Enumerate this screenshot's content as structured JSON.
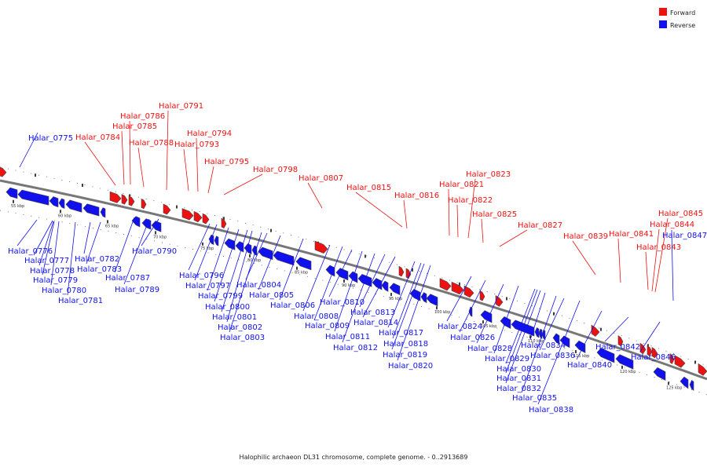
{
  "colors": {
    "forward": "#ee1111",
    "reverse": "#1111ee",
    "axis": "#777777"
  },
  "legend": [
    {
      "label": "Forward",
      "color": "#ee1111"
    },
    {
      "label": "Reverse",
      "color": "#1111ee"
    }
  ],
  "caption": "Halophilic archaeon DL31 chromosome, complete genome. - 0..2913689",
  "scale_labels": [
    "55 kbp",
    "60 kbp",
    "65 kbp",
    "70 kbp",
    "75 kbp",
    "80 kbp",
    "85 kbp",
    "90 kbp",
    "95 kbp",
    "100 kbp",
    "105 kbp",
    "110 kbp",
    "115 kbp",
    "120 kbp",
    "125 kbp"
  ],
  "forward_genes": [
    "Halar_0784",
    "Halar_0785",
    "Halar_0786",
    "Halar_0788",
    "Halar_0791",
    "Halar_0793",
    "Halar_0794",
    "Halar_0795",
    "Halar_0798",
    "Halar_0807",
    "Halar_0815",
    "Halar_0816",
    "Halar_0821",
    "Halar_0822",
    "Halar_0823",
    "Halar_0825",
    "Halar_0827",
    "Halar_0839",
    "Halar_0841",
    "Halar_0843",
    "Halar_0844",
    "Halar_0845"
  ],
  "reverse_genes": [
    "Halar_0775",
    "Halar_0776",
    "Halar_0777",
    "Halar_0778",
    "Halar_0779",
    "Halar_0780",
    "Halar_0781",
    "Halar_0782",
    "Halar_0783",
    "Halar_0787",
    "Halar_0789",
    "Halar_0790",
    "Halar_0796",
    "Halar_0797",
    "Halar_0799",
    "Halar_0800",
    "Halar_0801",
    "Halar_0802",
    "Halar_0803",
    "Halar_0804",
    "Halar_0805",
    "Halar_0806",
    "Halar_0808",
    "Halar_0809",
    "Halar_0810",
    "Halar_0811",
    "Halar_0812",
    "Halar_0813",
    "Halar_0814",
    "Halar_0817",
    "Halar_0818",
    "Halar_0819",
    "Halar_0820",
    "Halar_0824",
    "Halar_0826",
    "Halar_0828",
    "Halar_0829",
    "Halar_0830",
    "Halar_0831",
    "Halar_0832",
    "Halar_0834",
    "Halar_0835",
    "Halar_0836",
    "Halar_0838",
    "Halar_0840",
    "Halar_0842",
    "Halar_0846",
    "Halar_0847"
  ]
}
